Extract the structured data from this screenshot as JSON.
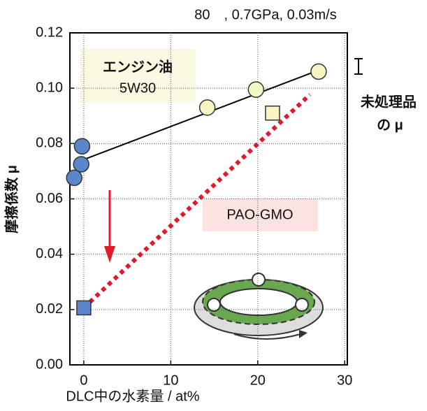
{
  "chart_data": {
    "type": "scatter",
    "title": "80　, 0.7GPa, 0.03m/s",
    "x_label": "DLC中の水素量 / at%",
    "y_label": "摩擦係数 μ",
    "xlim": [
      -1.6,
      30.3
    ],
    "ylim": [
      0,
      0.12
    ],
    "xticks": [
      0,
      10,
      20,
      30
    ],
    "yticks": [
      {
        "value": 0,
        "label": "0.00"
      },
      0.02,
      0.04,
      0.06,
      0.08,
      {
        "value": 0.1,
        "label": "0.10"
      },
      0.12
    ],
    "grid": true,
    "series": [
      {
        "name": "エンジン油",
        "grade": "5W30",
        "marker": "circle",
        "x": [
          -0.2,
          -0.3,
          -1.1,
          14.2,
          19.8,
          27.0
        ],
        "values": [
          0.079,
          0.0725,
          0.0676,
          0.093,
          0.0995,
          0.106
        ],
        "colors": [
          "#5b86cc",
          "#5b86cc",
          "#5b86cc",
          "#f8f5c4",
          "#f8f5c4",
          "#f8f5c4"
        ],
        "trend": {
          "x": [
            0,
            27
          ],
          "y": [
            0.0742,
            0.1065
          ],
          "color": "#000000",
          "style": "solid"
        }
      },
      {
        "name": "PAO-GMO",
        "marker": "square",
        "x": [
          0,
          21.7
        ],
        "values": [
          0.0206,
          0.091
        ],
        "colors": [
          "#5b86cc",
          "#f8f5c4"
        ],
        "trend": {
          "x": [
            0,
            26
          ],
          "y": [
            0.0206,
            0.0977
          ],
          "color": "#e0192c",
          "style": "dotted"
        }
      }
    ],
    "annotations": [
      "未処理品",
      "の μ"
    ]
  }
}
